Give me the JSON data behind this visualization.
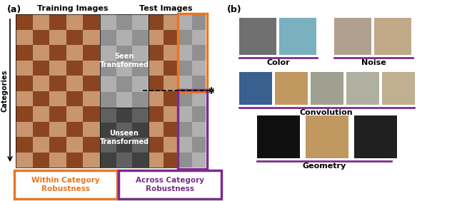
{
  "fig_width": 6.4,
  "fig_height": 2.82,
  "dpi": 100,
  "bg_color": "#ffffff",
  "panel_a_label": "(a)",
  "panel_b_label": "(b)",
  "title_training": "Training Images",
  "title_test": "Test Images",
  "label_seen": "Seen\nTransformed",
  "label_unseen": "Unseen\nTransformed",
  "label_categories": "Categories",
  "within_cat_label": "Within Category\nRobustness",
  "across_cat_label": "Across Category\nRobustness",
  "orange_color": "#E87722",
  "purple_color": "#7B2D8B",
  "dark_color": "#1a1a1a",
  "color_label": "Color",
  "noise_label": "Noise",
  "conv_label": "Convolution",
  "geom_label": "Geometry",
  "face_color": "#c8956e",
  "face_dark_color": "#3a2010",
  "gray_light": "#b0b0b0",
  "gray_dark": "#555555",
  "seen_bg": "#888888",
  "unseen_bg": "#333333",
  "arrow_color": "#1a1a1a",
  "dashed_color": "#1a1a1a"
}
